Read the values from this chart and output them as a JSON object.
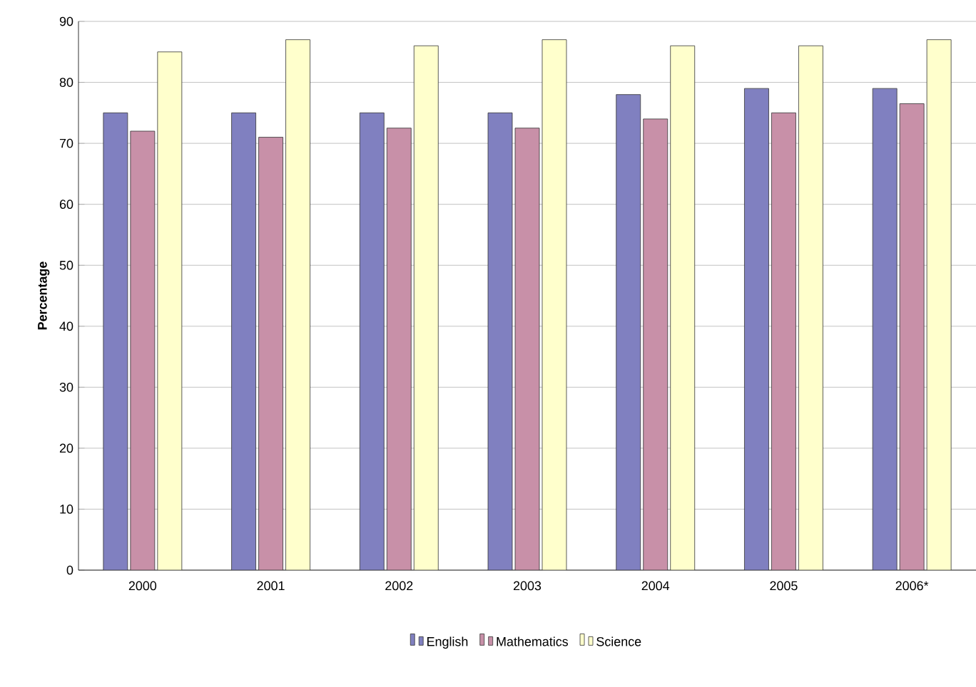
{
  "chart_data": {
    "type": "bar",
    "ylabel": "Percentage",
    "categories": [
      "2000",
      "2001",
      "2002",
      "2003",
      "2004",
      "2005",
      "2006*"
    ],
    "series": [
      {
        "name": "English",
        "color": "#8080c0",
        "values": [
          75,
          75,
          75,
          75,
          78,
          79,
          79
        ]
      },
      {
        "name": "Mathematics",
        "color": "#c890a8",
        "values": [
          72,
          71,
          72.5,
          72.5,
          74,
          75,
          76.5
        ]
      },
      {
        "name": "Science",
        "color": "#ffffcc",
        "values": [
          85,
          87,
          86,
          87,
          86,
          86,
          87
        ]
      }
    ],
    "ylim": [
      0,
      90
    ],
    "yticks": [
      0,
      10,
      20,
      30,
      40,
      50,
      60,
      70,
      80,
      90
    ],
    "grid": "y",
    "legend": "bottom"
  }
}
